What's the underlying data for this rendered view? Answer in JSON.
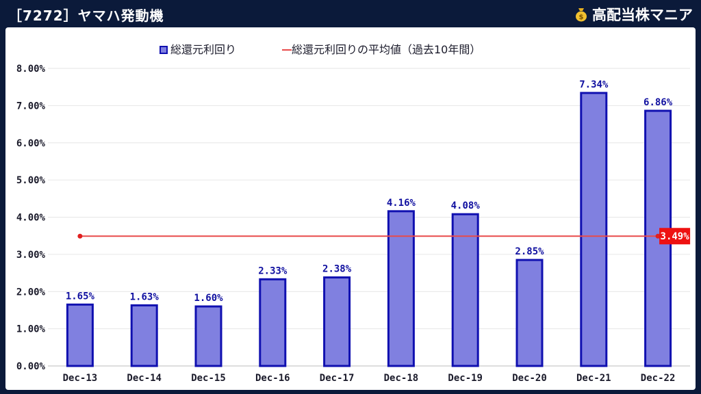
{
  "header": {
    "title": "［7272］ヤマハ発動機",
    "brand": "高配当株マニア",
    "brand_icon": "money-bag-icon"
  },
  "chart_data": {
    "type": "bar",
    "categories": [
      "Dec-13",
      "Dec-14",
      "Dec-15",
      "Dec-16",
      "Dec-17",
      "Dec-18",
      "Dec-19",
      "Dec-20",
      "Dec-21",
      "Dec-22"
    ],
    "series": [
      {
        "name": "総還元利回り",
        "type": "bar",
        "values": [
          1.65,
          1.63,
          1.6,
          2.33,
          2.38,
          4.16,
          4.08,
          2.85,
          7.34,
          6.86
        ],
        "labels": [
          "1.65%",
          "1.63%",
          "1.60%",
          "2.33%",
          "2.38%",
          "4.16%",
          "4.08%",
          "2.85%",
          "7.34%",
          "6.86%"
        ],
        "color": "#8080e0",
        "border": "#1010b0"
      },
      {
        "name": "総還元利回りの平均値（過去10年間）",
        "type": "line",
        "value": 3.49,
        "label": "3.49%",
        "color": "#e84a4a"
      }
    ],
    "yticks": [
      "0.00%",
      "1.00%",
      "2.00%",
      "3.00%",
      "4.00%",
      "5.00%",
      "6.00%",
      "7.00%",
      "8.00%"
    ],
    "ylim": [
      0,
      8
    ],
    "grid": true,
    "legend": "top-center"
  }
}
